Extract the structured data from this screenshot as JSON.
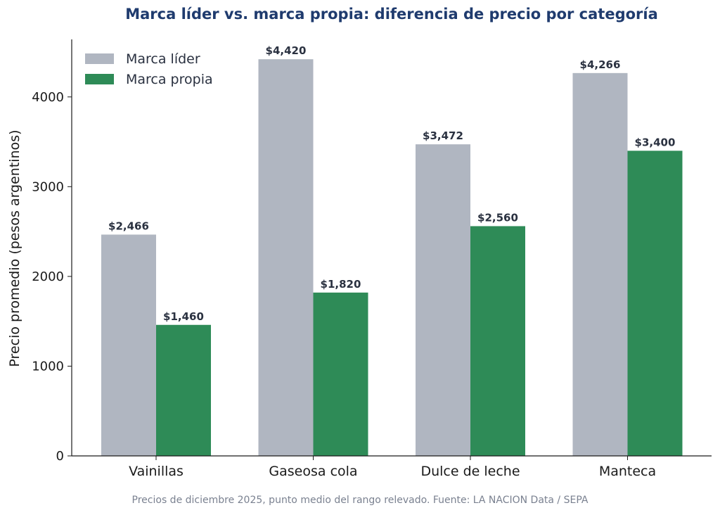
{
  "chart_data": {
    "type": "bar",
    "title": "Marca líder vs. marca propia: diferencia de precio por categoría",
    "ylabel": "Precio promedio (pesos argentinos)",
    "xlabel": "",
    "categories": [
      "Vainillas",
      "Gaseosa cola",
      "Dulce de leche",
      "Manteca"
    ],
    "series": [
      {
        "name": "Marca líder",
        "color": "#b0b6c1",
        "values": [
          2466,
          4420,
          3472,
          4266
        ],
        "labels": [
          "$2,466",
          "$4,420",
          "$3,472",
          "$4,266"
        ]
      },
      {
        "name": "Marca propia",
        "color": "#2e8b57",
        "values": [
          1460,
          1820,
          2560,
          3400
        ],
        "labels": [
          "$1,460",
          "$1,820",
          "$2,560",
          "$3,400"
        ]
      }
    ],
    "ylim": [
      0,
      4641
    ],
    "yticks": [
      0,
      1000,
      2000,
      3000,
      4000
    ],
    "ytick_labels": [
      "0",
      "1000",
      "2000",
      "3000",
      "4000"
    ],
    "grid": false,
    "legend_position": "top-left"
  },
  "footnote": "Precios de diciembre 2025, punto medio del rango relevado. Fuente: LA NACION Data / SEPA"
}
